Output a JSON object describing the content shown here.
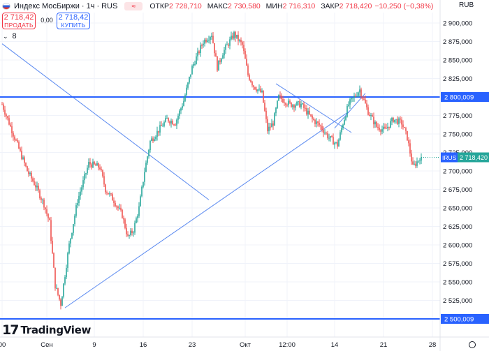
{
  "header": {
    "symbol_name": "Индекс МосБиржи",
    "interval": "1ч",
    "exchange": "RUS",
    "compare_glyph": "≈",
    "open_label": "ОТКР",
    "open": "2 728,710",
    "high_label": "МАКС",
    "high": "2 730,580",
    "low_label": "МИН",
    "low": "2 716,310",
    "close_label": "ЗАКР",
    "close": "2 718,420",
    "change": "−10,250 (−0,38%)",
    "flag_icon": "russia-flag-icon"
  },
  "trade": {
    "sell_price": "2 718,42",
    "sell_label": "ПРОДАТЬ",
    "spread": "0,00",
    "buy_price": "2 718,42",
    "buy_label": "КУПИТЬ"
  },
  "indicators": {
    "count": "8"
  },
  "currency": "RUB",
  "brand": {
    "name": "TradingView"
  },
  "colors": {
    "up": "#26a69a",
    "down": "#ef5350",
    "level": "#2962ff",
    "trendline": "#5b8af0",
    "tag_bg": "#2962ff"
  },
  "chart_data": {
    "type": "candlestick",
    "y_range": [
      2490,
      2912
    ],
    "y_ticks": [
      "2 500,000",
      "2 525,000",
      "2 550,000",
      "2 575,000",
      "2 600,000",
      "2 625,000",
      "2 650,000",
      "2 675,000",
      "2 700,000",
      "2 725,000",
      "2 750,000",
      "2 775,000",
      "2 800,000",
      "2 825,000",
      "2 850,000",
      "2 875,000",
      "2 900,000"
    ],
    "y_tick_values": [
      2500,
      2525,
      2550,
      2575,
      2600,
      2625,
      2650,
      2675,
      2700,
      2725,
      2750,
      2775,
      2800,
      2825,
      2850,
      2875,
      2900
    ],
    "x_ticks": [
      {
        "label": "00",
        "bar": 0
      },
      {
        "label": "Сен",
        "bar": 32
      },
      {
        "label": "9",
        "bar": 66
      },
      {
        "label": "16",
        "bar": 101
      },
      {
        "label": "23",
        "bar": 136
      },
      {
        "label": "Окт",
        "bar": 174
      },
      {
        "label": "12:00",
        "bar": 204
      },
      {
        "label": "14",
        "bar": 238
      },
      {
        "label": "21",
        "bar": 273
      },
      {
        "label": "28",
        "bar": 308
      }
    ],
    "bar_count": 310,
    "anchors": [
      [
        0,
        2790
      ],
      [
        6,
        2760
      ],
      [
        12,
        2730
      ],
      [
        18,
        2700
      ],
      [
        24,
        2680
      ],
      [
        30,
        2655
      ],
      [
        34,
        2630
      ],
      [
        38,
        2545
      ],
      [
        42,
        2520
      ],
      [
        45,
        2560
      ],
      [
        48,
        2600
      ],
      [
        54,
        2660
      ],
      [
        62,
        2710
      ],
      [
        70,
        2705
      ],
      [
        74,
        2675
      ],
      [
        80,
        2660
      ],
      [
        86,
        2640
      ],
      [
        90,
        2610
      ],
      [
        94,
        2620
      ],
      [
        98,
        2650
      ],
      [
        102,
        2700
      ],
      [
        106,
        2740
      ],
      [
        112,
        2755
      ],
      [
        118,
        2770
      ],
      [
        124,
        2765
      ],
      [
        130,
        2795
      ],
      [
        136,
        2840
      ],
      [
        144,
        2875
      ],
      [
        150,
        2885
      ],
      [
        154,
        2840
      ],
      [
        158,
        2860
      ],
      [
        166,
        2885
      ],
      [
        172,
        2870
      ],
      [
        176,
        2830
      ],
      [
        180,
        2815
      ],
      [
        186,
        2805
      ],
      [
        190,
        2755
      ],
      [
        194,
        2765
      ],
      [
        198,
        2800
      ],
      [
        206,
        2790
      ],
      [
        214,
        2790
      ],
      [
        222,
        2770
      ],
      [
        228,
        2760
      ],
      [
        234,
        2745
      ],
      [
        240,
        2735
      ],
      [
        244,
        2765
      ],
      [
        248,
        2790
      ],
      [
        252,
        2800
      ],
      [
        256,
        2810
      ],
      [
        262,
        2780
      ],
      [
        268,
        2760
      ],
      [
        274,
        2755
      ],
      [
        280,
        2770
      ],
      [
        286,
        2765
      ],
      [
        290,
        2745
      ],
      [
        294,
        2705
      ],
      [
        298,
        2715
      ],
      [
        300,
        2722
      ]
    ],
    "horizontal_levels": [
      {
        "value": 2800.009,
        "label": "2 800,009"
      },
      {
        "value": 2500.009,
        "label": "2 500,009"
      }
    ],
    "trendlines": [
      {
        "from": [
          0,
          2872
        ],
        "to": [
          148,
          2661
        ]
      },
      {
        "from": [
          45,
          2515
        ],
        "to": [
          248,
          2780
        ]
      },
      {
        "from": [
          196,
          2818
        ],
        "to": [
          250,
          2752
        ]
      },
      {
        "from": [
          238,
          2758
        ],
        "to": [
          260,
          2805
        ]
      }
    ],
    "last_price": {
      "value": 2718.42,
      "symbol": "IRUS",
      "label": "2 718,420"
    }
  }
}
